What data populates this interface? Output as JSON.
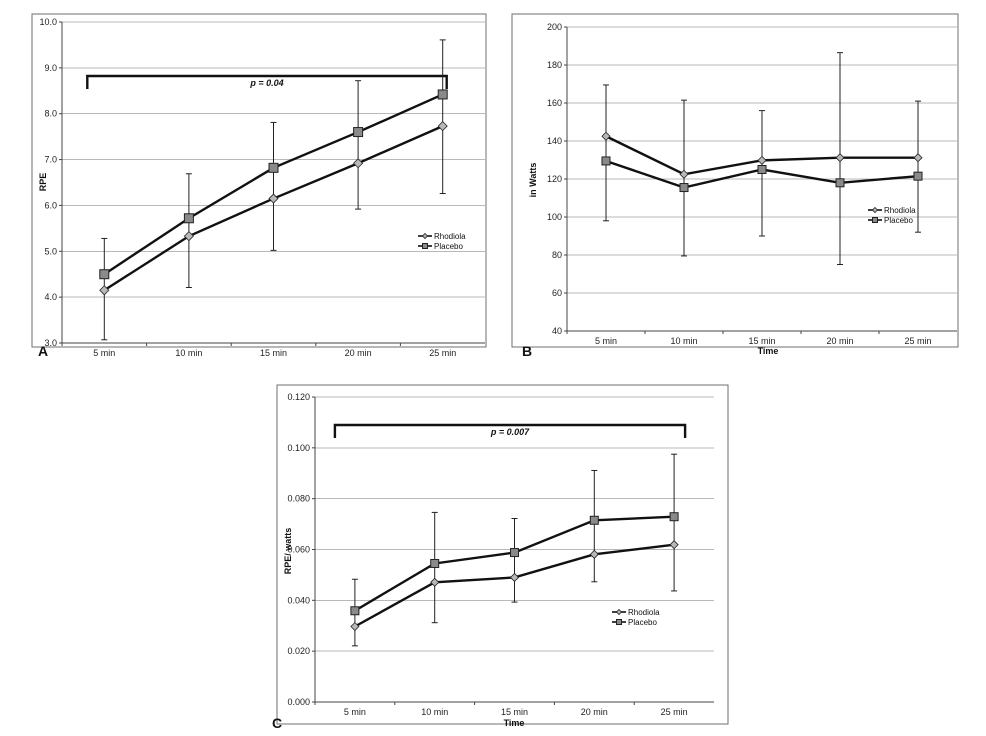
{
  "chart_data": [
    {
      "type": "line",
      "panel": "A",
      "title": "",
      "xlabel": "",
      "ylabel": "RPE",
      "categories": [
        "5 min",
        "10 min",
        "15 min",
        "20 min",
        "25 min"
      ],
      "ylim": [
        3.0,
        10.0
      ],
      "yticks": [
        "3.0",
        "4.0",
        "5.0",
        "6.0",
        "7.0",
        "8.0",
        "9.0",
        "10.0"
      ],
      "grid": true,
      "legend_position": "middle-right",
      "series": [
        {
          "name": "Rhodiola",
          "marker": "diamond",
          "values": [
            4.15,
            5.33,
            6.15,
            6.92,
            7.73
          ],
          "err_upper": [
            5.28,
            6.69,
            7.81,
            8.72,
            9.61
          ],
          "err_lower": [
            3.07,
            4.21,
            5.02,
            5.92,
            6.26
          ]
        },
        {
          "name": "Placebo",
          "marker": "square",
          "values": [
            4.5,
            5.72,
            6.82,
            7.6,
            8.42
          ],
          "err_upper": null,
          "err_lower": null
        }
      ],
      "annotation": {
        "text": "p = 0.04",
        "from_category": 0,
        "to_category": 4
      }
    },
    {
      "type": "line",
      "panel": "B",
      "title": "",
      "xlabel": "Time",
      "ylabel": "in Watts",
      "categories": [
        "5 min",
        "10 min",
        "15 min",
        "20 min",
        "25 min"
      ],
      "ylim": [
        40,
        200
      ],
      "yticks": [
        "40",
        "60",
        "80",
        "100",
        "120",
        "140",
        "160",
        "180",
        "200"
      ],
      "grid": true,
      "legend_position": "middle-right",
      "series": [
        {
          "name": "Rhodiola",
          "marker": "diamond",
          "values": [
            142.5,
            122.5,
            129.8,
            131.2,
            131.2
          ],
          "err_upper": [
            169.5,
            161.5,
            156,
            186.5,
            161
          ],
          "err_lower": [
            98,
            79.5,
            90,
            75,
            92
          ]
        },
        {
          "name": "Placebo",
          "marker": "square",
          "values": [
            129.5,
            115.5,
            125,
            118,
            121.5
          ],
          "err_upper": null,
          "err_lower": null
        }
      ]
    },
    {
      "type": "line",
      "panel": "C",
      "title": "",
      "xlabel": "Time",
      "ylabel": "RPE/ watts",
      "categories": [
        "5 min",
        "10 min",
        "15 min",
        "20 min",
        "25 min"
      ],
      "ylim": [
        0.0,
        0.12
      ],
      "yticks": [
        "0.000",
        "0.020",
        "0.040",
        "0.060",
        "0.080",
        "0.100",
        "0.120"
      ],
      "grid": true,
      "legend_position": "bottom-right",
      "series": [
        {
          "name": "Rhodiola",
          "marker": "diamond",
          "values": [
            0.0297,
            0.0471,
            0.049,
            0.0581,
            0.0619
          ],
          "err_upper": [
            0.0483,
            0.0746,
            0.0722,
            0.0911,
            0.0975
          ],
          "err_lower": [
            0.0221,
            0.0312,
            0.0393,
            0.0473,
            0.0437
          ]
        },
        {
          "name": "Placebo",
          "marker": "square",
          "values": [
            0.0359,
            0.0545,
            0.0588,
            0.0715,
            0.0729
          ],
          "err_upper": null,
          "err_lower": null
        }
      ],
      "annotation": {
        "text": "p = 0.007",
        "from_category": 0,
        "to_category": 4
      }
    }
  ]
}
